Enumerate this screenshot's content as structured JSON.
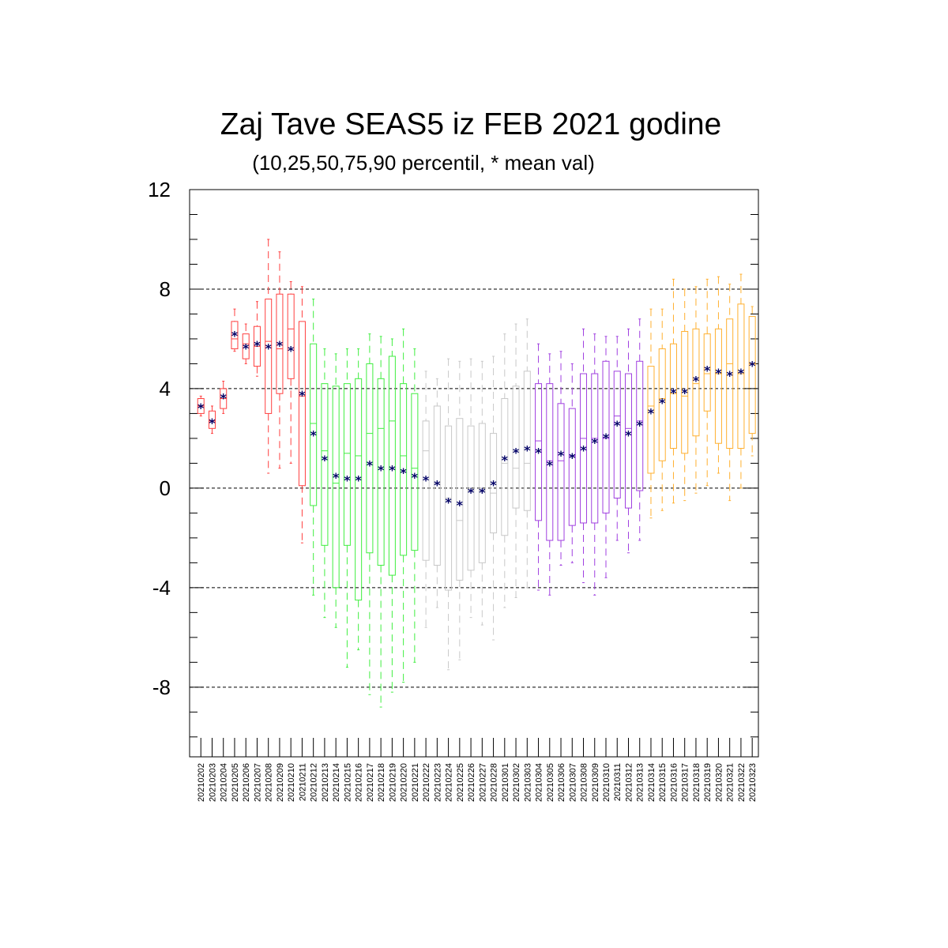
{
  "chart_data": {
    "type": "box",
    "title": "Zaj Tave SEAS5 iz FEB 2021 godine",
    "subtitle": "(10,25,50,75,90 percentil, * mean val)",
    "xlabel": "",
    "ylabel": "",
    "ylim": [
      -10.8,
      12
    ],
    "yticks": [
      12,
      8,
      4,
      0,
      -4,
      -8
    ],
    "ytick_labels": [
      "12",
      "8",
      "4",
      "0",
      "-4",
      "-8"
    ],
    "grid": true,
    "group_colors": [
      "#ff4040",
      "#40ee40",
      "#c8c8c8",
      "#a040e0",
      "#ffb030"
    ],
    "categories": [
      "20210202",
      "20210203",
      "20210204",
      "20210205",
      "20210206",
      "20210207",
      "20210208",
      "20210209",
      "20210210",
      "20210211",
      "20210212",
      "20210213",
      "20210214",
      "20210215",
      "20210216",
      "20210217",
      "20210218",
      "20210219",
      "20210220",
      "20210221",
      "20210222",
      "20210223",
      "20210224",
      "20210225",
      "20210226",
      "20210227",
      "20210228",
      "20210301",
      "20210302",
      "20210303",
      "20210304",
      "20210305",
      "20210306",
      "20210307",
      "20210308",
      "20210309",
      "20210310",
      "20210311",
      "20210312",
      "20210313",
      "20210314",
      "20210315",
      "20210316",
      "20210317",
      "20210318",
      "20210319",
      "20210320",
      "20210321",
      "20210322",
      "20210323"
    ],
    "group": [
      0,
      0,
      0,
      0,
      0,
      0,
      0,
      0,
      0,
      0,
      1,
      1,
      1,
      1,
      1,
      1,
      1,
      1,
      1,
      1,
      2,
      2,
      2,
      2,
      2,
      2,
      2,
      2,
      2,
      2,
      3,
      3,
      3,
      3,
      3,
      3,
      3,
      3,
      3,
      3,
      4,
      4,
      4,
      4,
      4,
      4,
      4,
      4,
      4,
      4
    ],
    "p10": [
      2.9,
      2.2,
      3.0,
      5.5,
      5.0,
      4.5,
      0.6,
      0.8,
      1.0,
      -2.2,
      -4.3,
      -5.2,
      -5.6,
      -7.2,
      -6.5,
      -8.3,
      -8.8,
      -8.2,
      -7.8,
      -7.0,
      -5.6,
      -4.8,
      -7.3,
      -6.9,
      -5.2,
      -5.5,
      -6.1,
      -4.8,
      -4.4,
      -4.0,
      -4.1,
      -4.3,
      -3.1,
      -3.0,
      -3.8,
      -4.3,
      -3.6,
      -2.1,
      -2.6,
      -2.1,
      -1.2,
      -0.9,
      -0.6,
      -0.5,
      -0.2,
      0.1,
      0.6,
      -0.5,
      0.0,
      1.3
    ],
    "p25": [
      3.0,
      2.4,
      3.2,
      5.6,
      5.2,
      4.9,
      3.0,
      3.8,
      4.4,
      0.1,
      -0.7,
      -2.3,
      -4.0,
      -2.3,
      -4.5,
      -2.6,
      -3.1,
      -3.5,
      -2.7,
      -2.5,
      -2.9,
      -3.1,
      -4.1,
      -3.7,
      -3.3,
      -3.0,
      -1.8,
      -1.9,
      -0.8,
      -0.9,
      -1.3,
      -2.1,
      -2.1,
      -1.5,
      -1.4,
      -1.4,
      -1.0,
      -0.4,
      -0.8,
      -0.1,
      0.6,
      1.1,
      1.6,
      1.4,
      2.1,
      3.1,
      1.8,
      1.6,
      1.6,
      2.2
    ],
    "p50": [
      3.3,
      2.7,
      3.6,
      6.0,
      5.8,
      5.7,
      5.9,
      5.6,
      6.4,
      3.7,
      2.6,
      1.5,
      0.2,
      1.4,
      1.3,
      2.2,
      2.4,
      2.7,
      1.3,
      0.8,
      1.5,
      0.2,
      -0.4,
      -1.3,
      -0.1,
      -0.1,
      -0.2,
      1.0,
      0.8,
      1.0,
      1.9,
      1.1,
      1.1,
      1.3,
      2.0,
      2.0,
      2.0,
      2.9,
      2.4,
      2.7,
      3.3,
      3.6,
      3.8,
      3.7,
      4.2,
      4.6,
      4.6,
      5.0,
      4.6,
      5.0
    ],
    "p75": [
      3.6,
      3.1,
      4.0,
      6.7,
      6.2,
      6.5,
      7.6,
      7.8,
      7.8,
      6.7,
      5.8,
      4.2,
      4.1,
      4.2,
      4.4,
      5.0,
      4.4,
      5.3,
      4.2,
      3.8,
      2.7,
      3.3,
      2.5,
      2.8,
      2.5,
      2.6,
      2.2,
      3.6,
      4.1,
      4.7,
      4.2,
      4.2,
      3.4,
      3.2,
      4.6,
      4.6,
      5.1,
      4.7,
      4.6,
      5.1,
      4.9,
      5.6,
      5.8,
      6.3,
      6.4,
      6.2,
      6.4,
      6.8,
      7.4,
      6.9
    ],
    "p90": [
      3.7,
      3.3,
      4.3,
      7.2,
      6.6,
      7.5,
      10.0,
      9.5,
      8.3,
      8.1,
      7.6,
      5.6,
      5.4,
      5.6,
      5.6,
      6.2,
      6.1,
      6.0,
      6.4,
      5.6,
      4.7,
      4.4,
      5.2,
      5.1,
      5.2,
      5.1,
      5.3,
      6.2,
      6.6,
      6.8,
      5.8,
      5.4,
      5.5,
      5.0,
      6.4,
      6.2,
      6.1,
      6.1,
      6.4,
      6.8,
      7.2,
      7.2,
      8.4,
      8.0,
      8.1,
      8.4,
      8.5,
      8.2,
      8.6,
      7.3
    ],
    "mean": [
      3.3,
      2.7,
      3.7,
      6.2,
      5.7,
      5.8,
      5.7,
      5.8,
      5.6,
      3.8,
      2.2,
      1.2,
      0.5,
      0.4,
      0.4,
      1.0,
      0.8,
      0.8,
      0.7,
      0.5,
      0.4,
      0.2,
      -0.5,
      -0.6,
      -0.1,
      -0.1,
      0.2,
      1.2,
      1.5,
      1.6,
      1.5,
      1.0,
      1.4,
      1.3,
      1.6,
      1.9,
      2.1,
      2.6,
      2.2,
      2.6,
      3.1,
      3.5,
      3.9,
      3.9,
      4.4,
      4.8,
      4.7,
      4.6,
      4.7,
      5.0
    ]
  }
}
